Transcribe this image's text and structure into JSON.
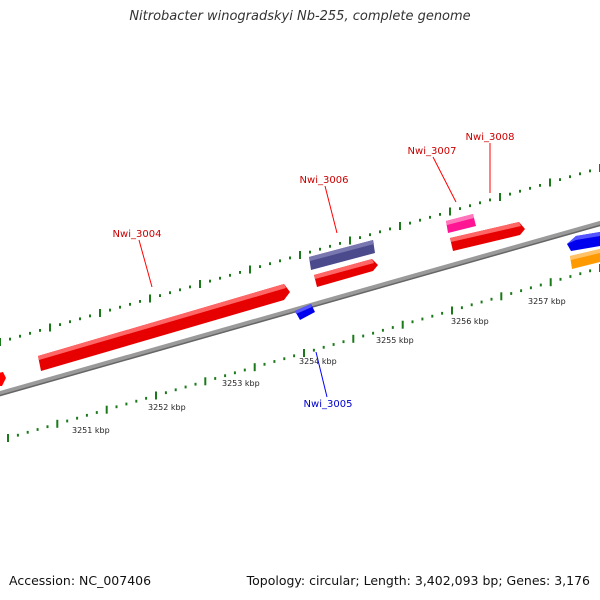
{
  "title": "Nitrobacter winogradskyi Nb-255, complete genome",
  "footer": {
    "accession": "Accession: NC_007406",
    "summary": "Topology: circular; Length: 3,402,093 bp; Genes: 3,176"
  },
  "colors": {
    "forward_gene": "#ff0000",
    "reverse_gene": "#0000ff",
    "gene_a": "#4b4a8c",
    "gene_b": "#ff3399",
    "gene_c": "#ff9900",
    "tick": "#1a7a1a",
    "backbone": "#808080"
  },
  "genes": [
    {
      "name": "Nwi_3004",
      "color": "#ff0000"
    },
    {
      "name": "Nwi_3005",
      "color": "#0000ff"
    },
    {
      "name": "Nwi_3006",
      "color": "#ff0000"
    },
    {
      "name": "Nwi_3007",
      "color": "#ff0000"
    },
    {
      "name": "Nwi_3008",
      "color": "#ff0000"
    }
  ],
  "scale_labels": [
    "3251 kbp",
    "3252 kbp",
    "3253 kbp",
    "3254 kbp",
    "3255 kbp",
    "3256 kbp",
    "3257 kbp"
  ]
}
